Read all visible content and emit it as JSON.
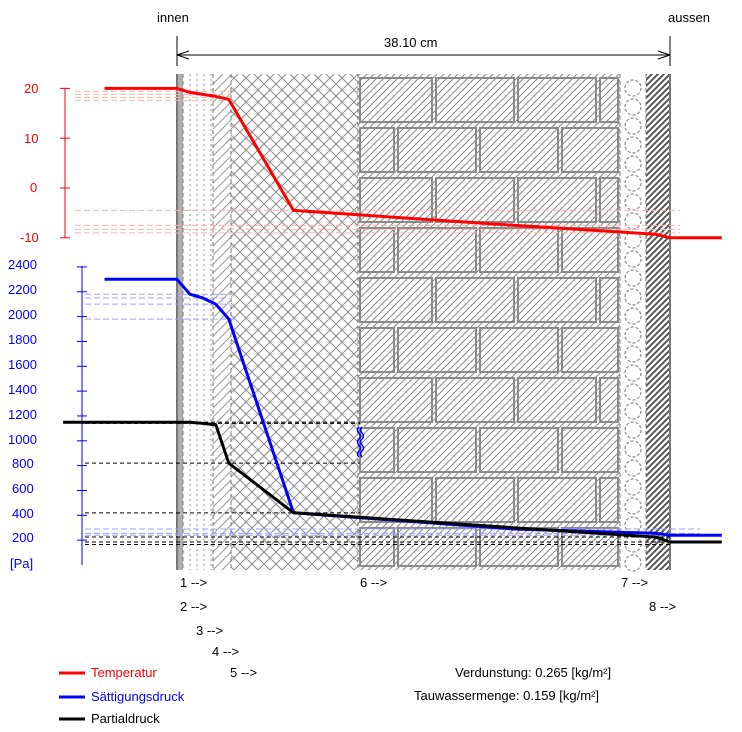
{
  "chart_data": {
    "type": "line",
    "header": {
      "inside": "innen",
      "outside": "aussen",
      "thickness": "38.10 cm"
    },
    "temperature_axis": {
      "ticks": [
        "20",
        "10",
        "0",
        "-10"
      ],
      "values": [
        20,
        10,
        0,
        -10
      ],
      "color": "#ff0000"
    },
    "pressure_axis": {
      "ticks": [
        "2400",
        "2200",
        "2000",
        "1800",
        "1600",
        "1400",
        "1200",
        "1000",
        "800",
        "600",
        "400",
        "200"
      ],
      "values": [
        2400,
        2200,
        2000,
        1800,
        1600,
        1400,
        1200,
        1000,
        800,
        600,
        400,
        200
      ],
      "unit": "[Pa]",
      "color": "#0000ff"
    },
    "layer_labels": [
      "1 -->",
      "2 -->",
      "3 -->",
      "4 -->",
      "5 -->",
      "6 -->",
      "7 -->",
      "8 -->"
    ],
    "series": [
      {
        "name": "Temperatur",
        "color": "#ff0000",
        "points": [
          [
            0,
            20
          ],
          [
            1.0,
            19.2
          ],
          [
            2.0,
            18.8
          ],
          [
            3.0,
            18.4
          ],
          [
            4.0,
            17.8
          ],
          [
            9.0,
            -4.5
          ],
          [
            26.0,
            -7.5
          ],
          [
            37.0,
            -9.3
          ],
          [
            38.1,
            -10
          ]
        ]
      },
      {
        "name": "Sättigungsdruck",
        "color": "#0000ff",
        "points": [
          [
            0,
            2300
          ],
          [
            1.0,
            2180
          ],
          [
            2.0,
            2150
          ],
          [
            3.0,
            2100
          ],
          [
            4.0,
            1980
          ],
          [
            9.0,
            420
          ],
          [
            26.0,
            290
          ],
          [
            37.0,
            255
          ],
          [
            38.1,
            240
          ]
        ]
      },
      {
        "name": "Partialdruck",
        "color": "#000000",
        "points": [
          [
            0,
            1150
          ],
          [
            1.0,
            1150
          ],
          [
            2.0,
            1140
          ],
          [
            3.0,
            1130
          ],
          [
            4.0,
            820
          ],
          [
            9.0,
            420
          ],
          [
            26.0,
            300
          ],
          [
            37.0,
            225
          ],
          [
            38.1,
            185
          ]
        ]
      }
    ],
    "results": [
      {
        "label": "Verdunstung:",
        "value": "0.265 [kg/m²]"
      },
      {
        "label": "Tauwassermenge:",
        "value": "0.159 [kg/m²]"
      }
    ]
  }
}
